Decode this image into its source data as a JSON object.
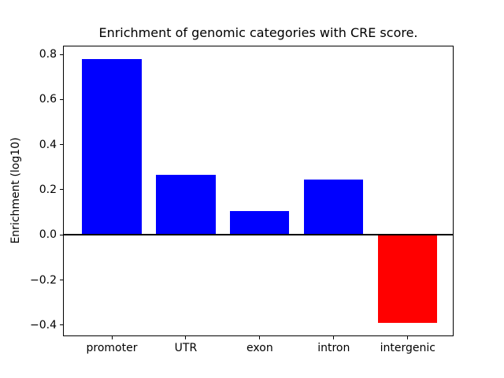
{
  "chart_data": {
    "type": "bar",
    "title": "Enrichment of genomic categories with CRE score.",
    "ylabel": "Enrichment (log10)",
    "xlabel": "",
    "categories": [
      "promoter",
      "UTR",
      "exon",
      "intron",
      "intergenic"
    ],
    "values": [
      0.78,
      0.265,
      0.105,
      0.245,
      -0.39
    ],
    "bar_colors": [
      "#0000ff",
      "#0000ff",
      "#0000ff",
      "#0000ff",
      "#ff0000"
    ],
    "positive_color": "#0000ff",
    "negative_color": "#ff0000",
    "bar_width": 0.8,
    "ylim": [
      -0.45,
      0.84
    ],
    "xlim": [
      -0.66,
      4.62
    ],
    "yticks": [
      0.8,
      0.6,
      0.4,
      0.2,
      0.0,
      -0.2,
      -0.4
    ],
    "ytick_labels": [
      "0.8",
      "0.6",
      "0.4",
      "0.2",
      "0.0",
      "−0.2",
      "−0.4"
    ],
    "grid": false,
    "legend": "none",
    "annotations": [
      {
        "type": "hline",
        "y": 0,
        "color": "#000000",
        "linewidth": 2
      }
    ]
  }
}
